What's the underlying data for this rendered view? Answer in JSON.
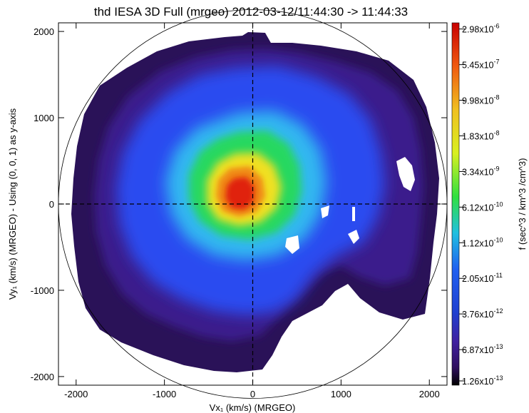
{
  "chart_data": {
    "type": "heatmap",
    "title": "thd IESA 3D Full (mrgeo) 2012-03-12/11:44:30 -> 11:44:33",
    "xlabel": "Vx₁ (km/s) (MRGEO)",
    "ylabel": "Vy₁ (km/s) (MRGEO) - Using (0, 0, 1) as y-axis",
    "xlim": [
      -2200,
      2200
    ],
    "ylim": [
      -2100,
      2100
    ],
    "x_ticks": [
      -2000,
      -1000,
      0,
      1000,
      2000
    ],
    "y_ticks": [
      -2000,
      -1000,
      0,
      1000,
      2000
    ],
    "x_tick_labels": [
      "-2000",
      "-1000",
      "0",
      "1000",
      "2000"
    ],
    "y_tick_labels": [
      "-2000",
      "-1000",
      "0",
      "1000",
      "2000"
    ],
    "reference_circle_radius": 2200,
    "dashed_zero_lines": true,
    "peak_center": [
      -200,
      150
    ],
    "colorbar": {
      "label": "f (sec^3 / km^3 /cm^3)",
      "scale": "log",
      "range": [
        1.26e-13,
        4e-06
      ],
      "tick_values": [
        2.98e-06,
        5.45e-07,
        9.98e-08,
        1.83e-08,
        3.34e-09,
        6.12e-10,
        1.12e-10,
        2.05e-11,
        3.76e-12,
        6.87e-13,
        1.26e-13
      ],
      "tick_labels": [
        {
          "mant": "2.98x10",
          "exp": "-6"
        },
        {
          "mant": "5.45x10",
          "exp": "-7"
        },
        {
          "mant": "9.98x10",
          "exp": "-8"
        },
        {
          "mant": "1.83x10",
          "exp": "-8"
        },
        {
          "mant": "3.34x10",
          "exp": "-9"
        },
        {
          "mant": "6.12x10",
          "exp": "-10"
        },
        {
          "mant": "1.12x10",
          "exp": "-10"
        },
        {
          "mant": "2.05x10",
          "exp": "-11"
        },
        {
          "mant": "3.76x10",
          "exp": "-12"
        },
        {
          "mant": "6.87x10",
          "exp": "-13"
        },
        {
          "mant": "1.26x10",
          "exp": "-13"
        }
      ]
    },
    "colors": {
      "outer": "#2a1258",
      "ring": "#3b1f8c",
      "blue": "#2a4cf0",
      "cyan": "#30b8f0",
      "green": "#28d860",
      "yellow": "#f0e020",
      "orange": "#f08a18",
      "red": "#e02010",
      "gap": "#ffffff"
    }
  }
}
